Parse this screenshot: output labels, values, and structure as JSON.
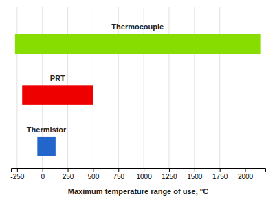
{
  "chart_data": {
    "type": "bar",
    "orientation": "horizontal",
    "xlabel": "Maximum temperature range of use, °C",
    "categories": [
      "Thermocouple",
      "PRT",
      "Thermistor"
    ],
    "low": [
      -270,
      -200,
      -50
    ],
    "high": [
      2150,
      500,
      130
    ],
    "colors": [
      "#88DD00",
      "#EE0000",
      "#2266CC"
    ],
    "xlim": [
      -310,
      2200
    ],
    "xticks": [
      -250,
      0,
      250,
      500,
      750,
      1000,
      1250,
      1500,
      1750,
      2000
    ],
    "grid": true,
    "tick_labels": "x"
  }
}
